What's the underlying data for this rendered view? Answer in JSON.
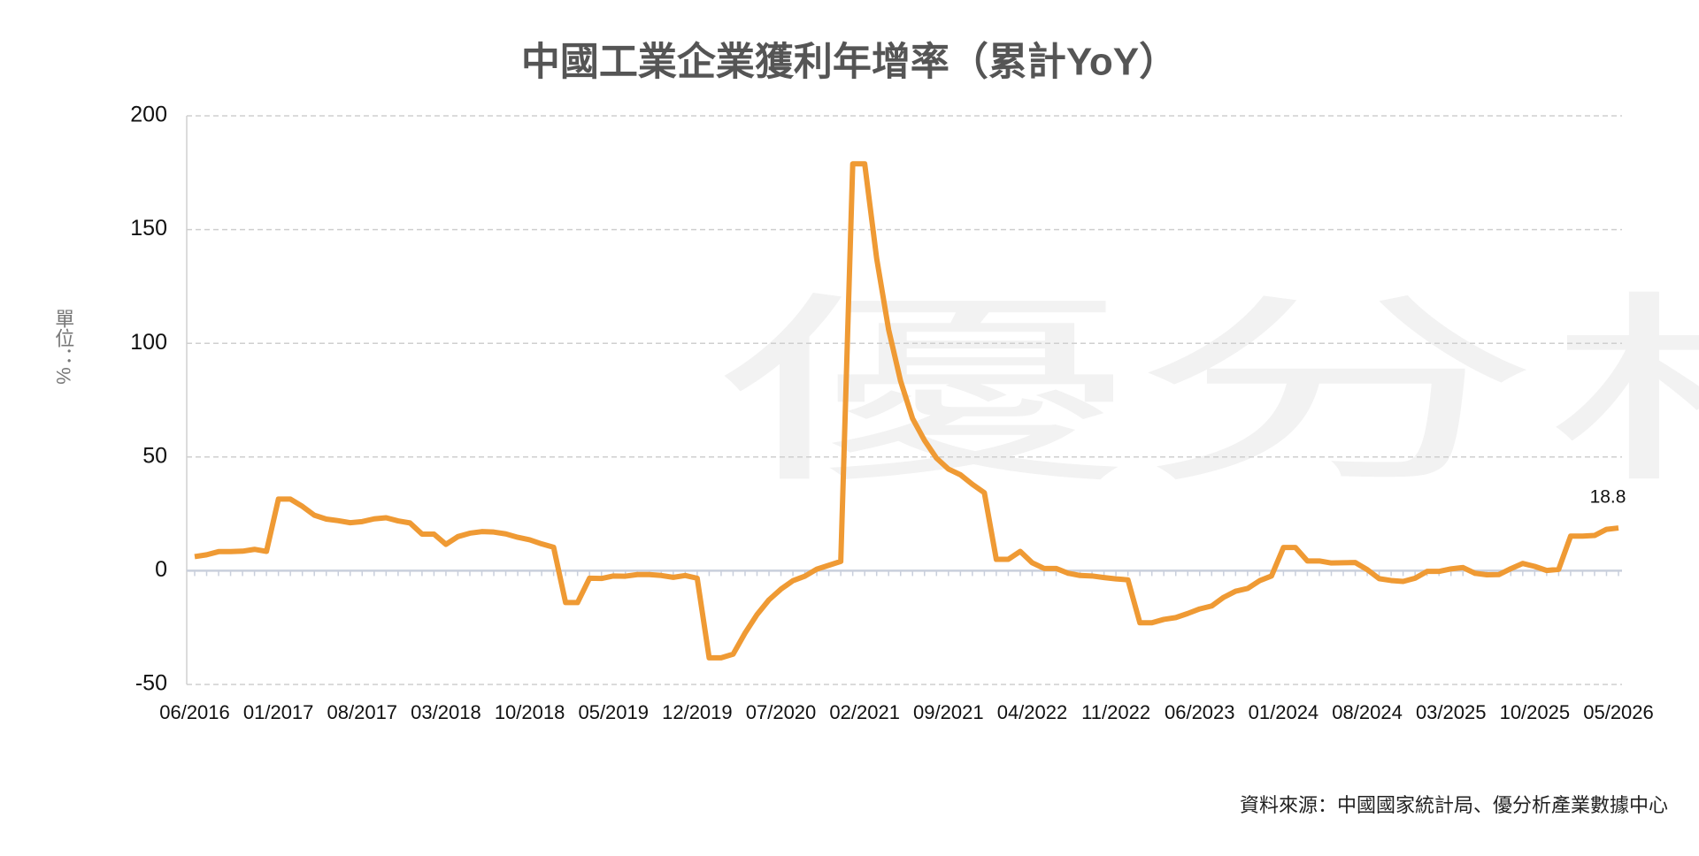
{
  "chart_data": {
    "type": "line",
    "title": "中國工業企業獲利年增率（累計YoY）",
    "y_label": "單位：%",
    "source": "資料來源：中國國家統計局、優分析產業數據中心",
    "watermark": "優分析",
    "categories": [
      "06/2016",
      null,
      null,
      null,
      null,
      null,
      null,
      "01/2017",
      null,
      null,
      null,
      null,
      null,
      null,
      "08/2017",
      null,
      null,
      null,
      null,
      null,
      null,
      "03/2018",
      null,
      null,
      null,
      null,
      null,
      null,
      "10/2018",
      null,
      null,
      null,
      null,
      null,
      null,
      "05/2019",
      null,
      null,
      null,
      null,
      null,
      null,
      "12/2019",
      null,
      null,
      null,
      null,
      null,
      null,
      "07/2020",
      null,
      null,
      null,
      null,
      null,
      null,
      "02/2021",
      null,
      null,
      null,
      null,
      null,
      null,
      "09/2021",
      null,
      null,
      null,
      null,
      null,
      null,
      "04/2022",
      null,
      null,
      null,
      null,
      null,
      null,
      "11/2022",
      null,
      null,
      null,
      null,
      null,
      null,
      "06/2023",
      null,
      null,
      null,
      null,
      null,
      null,
      "01/2024",
      null,
      null,
      null,
      null,
      null,
      null,
      "08/2024",
      null,
      null,
      null,
      null,
      null,
      null,
      "03/2025",
      null,
      null,
      null,
      null,
      null,
      null,
      "10/2025",
      null,
      null,
      null,
      null,
      null,
      null,
      "05/2026"
    ],
    "series": [
      {
        "name": "YoY",
        "color": "#ef9a34",
        "values": [
          6.2,
          7.0,
          8.4,
          8.4,
          8.6,
          9.4,
          8.5,
          31.5,
          31.5,
          28.3,
          24.4,
          22.7,
          22.0,
          21.1,
          21.6,
          22.8,
          23.3,
          21.9,
          21.0,
          16.1,
          16.1,
          11.6,
          15.0,
          16.5,
          17.2,
          17.0,
          16.2,
          14.7,
          13.6,
          11.8,
          10.3,
          -14.0,
          -14.0,
          -3.3,
          -3.4,
          -2.3,
          -2.4,
          -1.7,
          -1.7,
          -2.1,
          -2.9,
          -2.1,
          -3.3,
          -38.3,
          -38.3,
          -36.7,
          -27.4,
          -19.3,
          -12.8,
          -8.1,
          -4.4,
          -2.4,
          0.7,
          2.4,
          4.1,
          178.9,
          178.9,
          137.3,
          106.0,
          83.4,
          66.9,
          57.3,
          49.5,
          44.7,
          42.2,
          38.0,
          34.3,
          5.0,
          5.0,
          8.5,
          3.5,
          1.0,
          1.0,
          -1.1,
          -2.1,
          -2.3,
          -3.0,
          -3.6,
          -4.0,
          -22.9,
          -22.9,
          -21.4,
          -20.6,
          -18.8,
          -16.8,
          -15.5,
          -11.7,
          -9.0,
          -7.8,
          -4.4,
          -2.3,
          10.2,
          10.2,
          4.3,
          4.3,
          3.4,
          3.5,
          3.6,
          0.5,
          -3.5,
          -4.3,
          -4.7,
          -3.3,
          -0.3,
          -0.3,
          0.8,
          1.4,
          -1.1,
          -1.8,
          -1.7,
          0.9,
          3.2,
          1.9,
          0.1,
          0.6,
          15.2,
          15.2,
          15.5,
          18.2,
          18.8
        ]
      }
    ],
    "ylim": [
      -50,
      200
    ],
    "yticks": [
      -50,
      0,
      50,
      100,
      150,
      200
    ],
    "grid": true
  }
}
